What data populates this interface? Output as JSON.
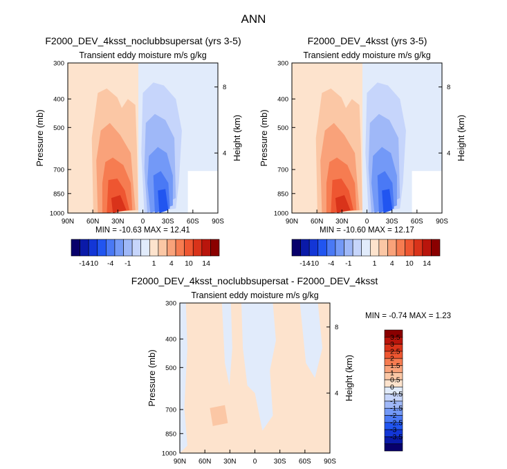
{
  "suptitle": "ANN",
  "chart_data": [
    {
      "type": "heatmap",
      "title": "F2000_DEV_4ksst_noclubbsupersat (yrs 3-5)",
      "subtitle": "Transient eddy moisture m/s g/kg",
      "xlabel": "",
      "ylabel": "Pressure (mb)",
      "y2label": "Height (km)",
      "x_ticks": [
        "90N",
        "60N",
        "30N",
        "0",
        "30S",
        "60S",
        "90S"
      ],
      "y_ticks": [
        "300",
        "400",
        "500",
        "700",
        "850",
        "1000"
      ],
      "y2_ticks": [
        "8",
        "4"
      ],
      "stats": {
        "min_label": "MIN =",
        "min": "-10.63",
        "max_label": "MAX =",
        "max": "12.41"
      },
      "colorbar": {
        "orientation": "horizontal",
        "labels": [
          "-14",
          "-10",
          "-4",
          "-1",
          "1",
          "4",
          "10",
          "14"
        ]
      }
    },
    {
      "type": "heatmap",
      "title": "F2000_DEV_4ksst (yrs 3-5)",
      "subtitle": "Transient eddy moisture m/s g/kg",
      "xlabel": "",
      "ylabel": "Pressure (mb)",
      "y2label": "Height (km)",
      "x_ticks": [
        "90N",
        "60N",
        "30N",
        "0",
        "30S",
        "60S",
        "90S"
      ],
      "y_ticks": [
        "300",
        "400",
        "500",
        "700",
        "850",
        "1000"
      ],
      "y2_ticks": [
        "8",
        "4"
      ],
      "stats": {
        "min_label": "MIN =",
        "min": "-10.60",
        "max_label": "MAX =",
        "max": "12.17"
      },
      "colorbar": {
        "orientation": "horizontal",
        "labels": [
          "-14",
          "-10",
          "-4",
          "-1",
          "1",
          "4",
          "10",
          "14"
        ]
      }
    },
    {
      "type": "heatmap",
      "title": "F2000_DEV_4ksst_noclubbsupersat - F2000_DEV_4ksst",
      "subtitle": "Transient eddy moisture m/s g/kg",
      "xlabel": "",
      "ylabel": "Pressure (mb)",
      "y2label": "Height (km)",
      "x_ticks": [
        "90N",
        "60N",
        "30N",
        "0",
        "30S",
        "60S",
        "90S"
      ],
      "y_ticks": [
        "300",
        "400",
        "500",
        "700",
        "850",
        "1000"
      ],
      "y2_ticks": [
        "8",
        "4"
      ],
      "stats": {
        "min_label": "MIN =",
        "min": "-0.74",
        "max_label": "MAX =",
        "max": "1.23"
      },
      "colorbar": {
        "orientation": "vertical",
        "labels": [
          "3.5",
          "3",
          "2.5",
          "2",
          "1.5",
          "1",
          "0.5",
          "0",
          "-0.5",
          "-1",
          "-1.5",
          "-2",
          "-2.5",
          "-3",
          "-3.5"
        ]
      }
    }
  ],
  "palette": {
    "diverging": [
      "#08006b",
      "#0a1aa8",
      "#1336d6",
      "#2155f0",
      "#4a79f5",
      "#7399f7",
      "#9fb8f8",
      "#c6d5fb",
      "#e1ebfb",
      "#fde3cd",
      "#fbc7a5",
      "#f9a27a",
      "#f67c51",
      "#ee5631",
      "#d9331a",
      "#b9150c",
      "#8a0000"
    ],
    "diff": [
      "#8a0000",
      "#b9150c",
      "#d9331a",
      "#ee5631",
      "#f67c51",
      "#f9a27a",
      "#fbc7a5",
      "#fde3cd",
      "#e1ebfb",
      "#c6d5fb",
      "#9fb8f8",
      "#7399f7",
      "#4a79f5",
      "#2155f0",
      "#1336d6",
      "#0a1aa8",
      "#08006b"
    ]
  }
}
